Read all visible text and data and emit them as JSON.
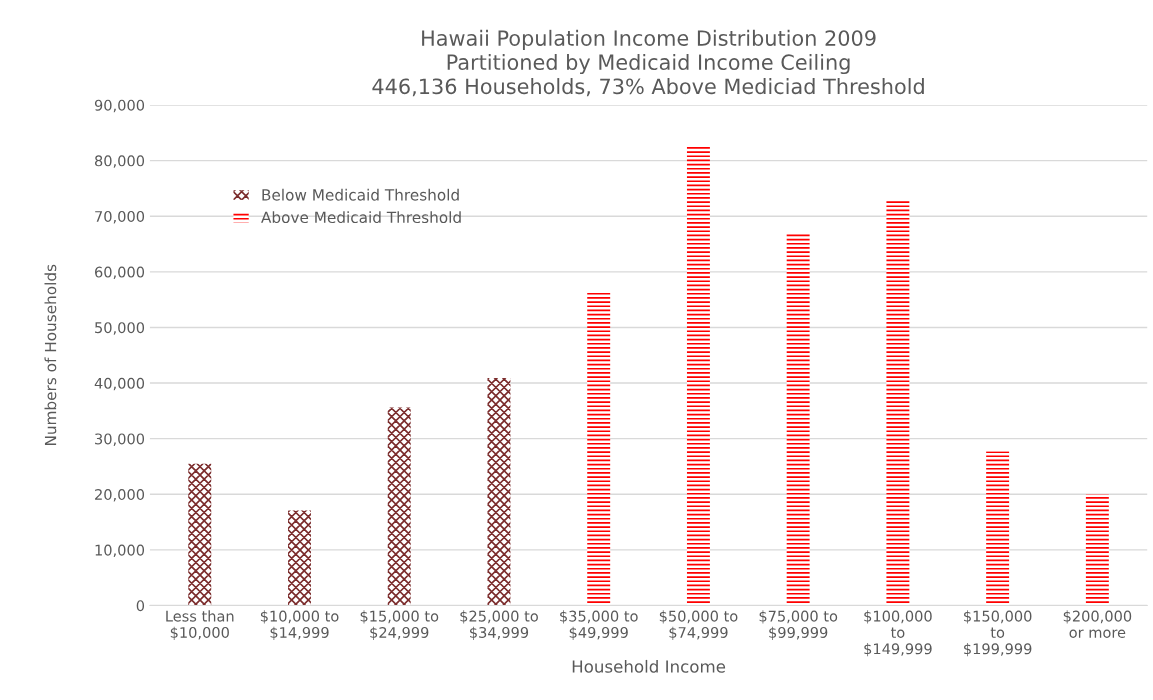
{
  "chart_data": {
    "type": "bar",
    "title": "Hawaii Population Income Distribution 2009\nPartitioned by Medicaid Income Ceiling\n446,136 Households, 73% Above Mediciad Threshold",
    "xlabel": "Household Income",
    "ylabel": "Numbers of Households",
    "categories": [
      "Less than\n$10,000",
      "$10,000 to\n$14,999",
      "$15,000 to\n$24,999",
      "$25,000 to\n$34,999",
      "$35,000 to\n$49,999",
      "$50,000 to\n$74,999",
      "$75,000 to\n$99,999",
      "$100,000\nto\n$149,999",
      "$150,000\nto\n$199,999",
      "$200,000\nor more"
    ],
    "series": [
      {
        "name": "Below Medicaid Threshold",
        "color": "#7b2c2c",
        "values": [
          25500,
          17100,
          35600,
          40900,
          null,
          null,
          null,
          null,
          null,
          null
        ]
      },
      {
        "name": "Above Medicaid Threshold",
        "color": "#ff0000",
        "values": [
          null,
          null,
          null,
          null,
          56400,
          82700,
          67100,
          72800,
          27700,
          20000
        ]
      }
    ],
    "ylim": [
      0,
      90000
    ],
    "yticks": [
      {
        "value": 0,
        "label": "0"
      },
      {
        "value": 10000,
        "label": "10,000"
      },
      {
        "value": 20000,
        "label": "20,000"
      },
      {
        "value": 30000,
        "label": "30,000"
      },
      {
        "value": 40000,
        "label": "40,000"
      },
      {
        "value": 50000,
        "label": "50,000"
      },
      {
        "value": 60000,
        "label": "60,000"
      },
      {
        "value": 70000,
        "label": "70,000"
      },
      {
        "value": 80000,
        "label": "80,000"
      },
      {
        "value": 90000,
        "label": "90,000"
      }
    ],
    "grid": "y",
    "legend": "top left"
  }
}
